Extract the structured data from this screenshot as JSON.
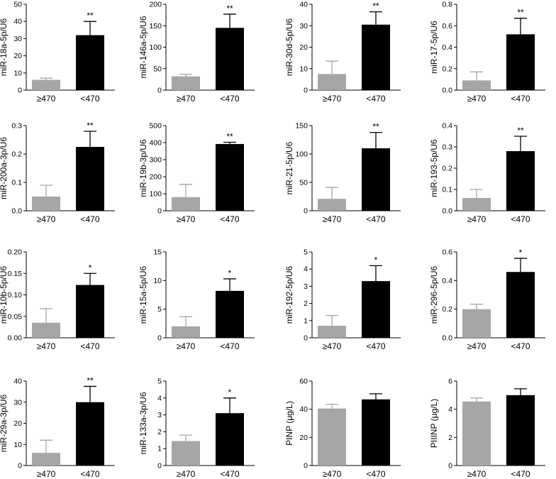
{
  "colors": {
    "low_group": "#a6a6a6",
    "high_group": "#000000",
    "axis": "#000000"
  },
  "chart_data": [
    {
      "type": "bar",
      "ylabel": "miR-18a-5p/U6",
      "categories": [
        "≥470",
        "<470"
      ],
      "values": [
        6,
        32
      ],
      "errors": [
        1,
        8
      ],
      "sig": "**",
      "ylim": [
        0,
        50
      ],
      "yticks": [
        0,
        10,
        20,
        30,
        40,
        50
      ],
      "ytick_labels": [
        "0",
        "10",
        "20",
        "30",
        "40",
        "50"
      ]
    },
    {
      "type": "bar",
      "ylabel": "miR-146a-5p/U6",
      "categories": [
        "≥470",
        "<470"
      ],
      "values": [
        32,
        145
      ],
      "errors": [
        5,
        32
      ],
      "sig": "**",
      "ylim": [
        0,
        200
      ],
      "yticks": [
        0,
        50,
        100,
        150,
        200
      ],
      "ytick_labels": [
        "0",
        "50",
        "100",
        "150",
        "200"
      ]
    },
    {
      "type": "bar",
      "ylabel": "miR-30d-5p/U6",
      "categories": [
        "≥470",
        "<470"
      ],
      "values": [
        7.5,
        30.5
      ],
      "errors": [
        6,
        6
      ],
      "sig": "**",
      "ylim": [
        0,
        40
      ],
      "yticks": [
        0,
        10,
        20,
        30,
        40
      ],
      "ytick_labels": [
        "0",
        "10",
        "20",
        "30",
        "40"
      ]
    },
    {
      "type": "bar",
      "ylabel": "miR-17-5p/U6",
      "categories": [
        "≥470",
        "<470"
      ],
      "values": [
        0.09,
        0.52
      ],
      "errors": [
        0.08,
        0.15
      ],
      "sig": "**",
      "ylim": [
        0,
        0.8
      ],
      "yticks": [
        0,
        0.2,
        0.4,
        0.6,
        0.8
      ],
      "ytick_labels": [
        "0.0",
        "0.2",
        "0.4",
        "0.6",
        "0.8"
      ]
    },
    {
      "type": "bar",
      "ylabel": "miR-200a-3p/U6",
      "categories": [
        "≥470",
        "<470"
      ],
      "values": [
        0.05,
        0.225
      ],
      "errors": [
        0.04,
        0.055
      ],
      "sig": "**",
      "ylim": [
        0,
        0.3
      ],
      "yticks": [
        0,
        0.1,
        0.2,
        0.3
      ],
      "ytick_labels": [
        "0.0",
        "0.1",
        "0.2",
        "0.3"
      ]
    },
    {
      "type": "bar",
      "ylabel": "miR-19b-3p/U6",
      "categories": [
        "≥470",
        "<470"
      ],
      "values": [
        80,
        392
      ],
      "errors": [
        75,
        10
      ],
      "sig": "**",
      "ylim": [
        0,
        500
      ],
      "yticks": [
        0,
        100,
        200,
        300,
        400,
        500
      ],
      "ytick_labels": [
        "0",
        "100",
        "200",
        "300",
        "400",
        "500"
      ]
    },
    {
      "type": "bar",
      "ylabel": "miR-21-5p/U6",
      "categories": [
        "≥470",
        "<470"
      ],
      "values": [
        21,
        110
      ],
      "errors": [
        20,
        28
      ],
      "sig": "**",
      "ylim": [
        0,
        150
      ],
      "yticks": [
        0,
        50,
        100,
        150
      ],
      "ytick_labels": [
        "0",
        "50",
        "100",
        "150"
      ]
    },
    {
      "type": "bar",
      "ylabel": "miR-193-5p/U6",
      "categories": [
        "≥470",
        "<470"
      ],
      "values": [
        0.06,
        0.28
      ],
      "errors": [
        0.04,
        0.07
      ],
      "sig": "**",
      "ylim": [
        0,
        0.4
      ],
      "yticks": [
        0,
        0.1,
        0.2,
        0.3,
        0.4
      ],
      "ytick_labels": [
        "0.0",
        "0.1",
        "0.2",
        "0.3",
        "0.4"
      ]
    },
    {
      "type": "bar",
      "ylabel": "miR-10b-5p/U6",
      "categories": [
        "≥470",
        "<470"
      ],
      "values": [
        0.035,
        0.123
      ],
      "errors": [
        0.033,
        0.027
      ],
      "sig": "*",
      "ylim": [
        0,
        0.2
      ],
      "yticks": [
        0,
        0.05,
        0.1,
        0.15,
        0.2
      ],
      "ytick_labels": [
        "0.00",
        "0.05",
        "0.10",
        "0.15",
        "0.20"
      ]
    },
    {
      "type": "bar",
      "ylabel": "miR-15a-5p/U6",
      "categories": [
        "≥470",
        "<470"
      ],
      "values": [
        2,
        8.2
      ],
      "errors": [
        1.7,
        2.1
      ],
      "sig": "*",
      "ylim": [
        0,
        15
      ],
      "yticks": [
        0,
        5,
        10,
        15
      ],
      "ytick_labels": [
        "0",
        "5",
        "10",
        "15"
      ]
    },
    {
      "type": "bar",
      "ylabel": "miR-192-5p/U6",
      "categories": [
        "≥470",
        "<470"
      ],
      "values": [
        0.7,
        3.3
      ],
      "errors": [
        0.6,
        0.9
      ],
      "sig": "*",
      "ylim": [
        0,
        5
      ],
      "yticks": [
        0,
        1,
        2,
        3,
        4,
        5
      ],
      "ytick_labels": [
        "0",
        "1",
        "2",
        "3",
        "4",
        "5"
      ]
    },
    {
      "type": "bar",
      "ylabel": "miR-296-5p/U6",
      "categories": [
        "≥470",
        "<470"
      ],
      "values": [
        0.2,
        0.46
      ],
      "errors": [
        0.035,
        0.095
      ],
      "sig": "*",
      "ylim": [
        0,
        0.6
      ],
      "yticks": [
        0,
        0.2,
        0.4,
        0.6
      ],
      "ytick_labels": [
        "0.0",
        "0.2",
        "0.4",
        "0.6"
      ]
    },
    {
      "type": "bar",
      "ylabel": "miR-29a-3p/U6",
      "categories": [
        "≥470",
        "<470"
      ],
      "values": [
        6,
        30
      ],
      "errors": [
        6,
        7.5
      ],
      "sig": "**",
      "ylim": [
        0,
        40
      ],
      "yticks": [
        0,
        10,
        20,
        30,
        40
      ],
      "ytick_labels": [
        "0",
        "10",
        "20",
        "30",
        "40"
      ]
    },
    {
      "type": "bar",
      "ylabel": "miR-133a-3p/U6",
      "categories": [
        "≥470",
        "<470"
      ],
      "values": [
        1.45,
        3.1
      ],
      "errors": [
        0.35,
        0.9
      ],
      "sig": "*",
      "ylim": [
        0,
        5
      ],
      "yticks": [
        0,
        1,
        2,
        3,
        4,
        5
      ],
      "ytick_labels": [
        "0",
        "1",
        "2",
        "3",
        "4",
        "5"
      ]
    },
    {
      "type": "bar",
      "ylabel": "PINP (μg/L)",
      "categories": [
        "≥470",
        "<470"
      ],
      "values": [
        40.5,
        47
      ],
      "errors": [
        3,
        4
      ],
      "sig": "",
      "ylim": [
        0,
        60
      ],
      "yticks": [
        0,
        20,
        40,
        60
      ],
      "ytick_labels": [
        "0",
        "20",
        "40",
        "60"
      ]
    },
    {
      "type": "bar",
      "ylabel": "PIIINP (μg/L)",
      "categories": [
        "≥470",
        "<470"
      ],
      "values": [
        4.55,
        5
      ],
      "errors": [
        0.25,
        0.45
      ],
      "sig": "",
      "ylim": [
        0,
        6
      ],
      "yticks": [
        0,
        2,
        4,
        6
      ],
      "ytick_labels": [
        "0",
        "2",
        "4",
        "6"
      ]
    }
  ]
}
